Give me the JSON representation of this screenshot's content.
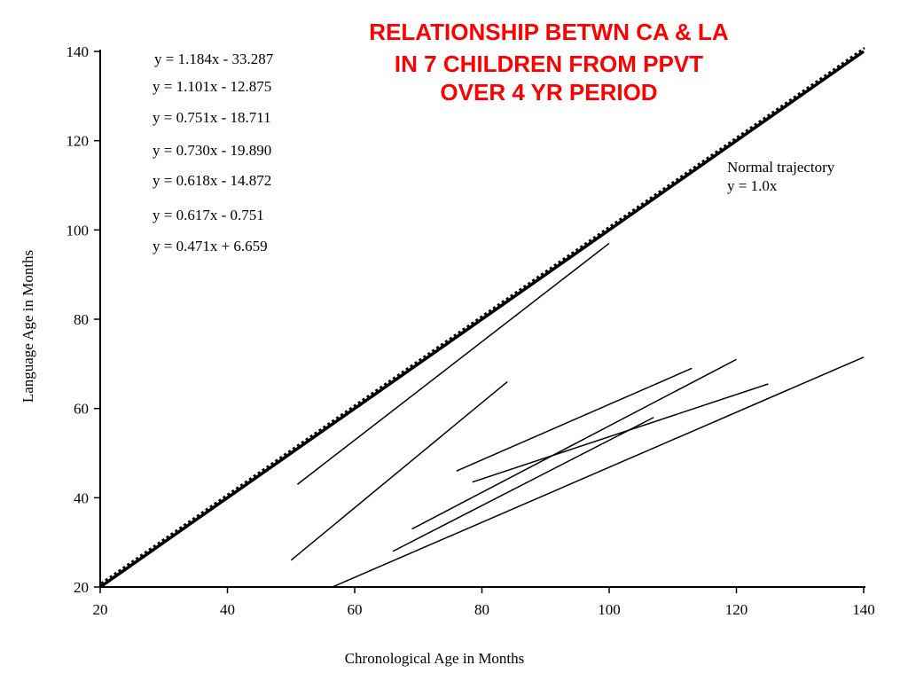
{
  "chart_data": {
    "type": "line",
    "title_lines": [
      "RELATIONSHIP BETWN CA & LA",
      "IN 7 CHILDREN FROM PPVT",
      "OVER 4 YR PERIOD"
    ],
    "xlabel": "Chronological Age in Months",
    "ylabel": "Language Age in Months",
    "xlim": [
      20,
      140
    ],
    "ylim": [
      20,
      140
    ],
    "x_ticks": [
      20,
      40,
      60,
      80,
      100,
      120,
      140
    ],
    "y_ticks": [
      20,
      40,
      60,
      80,
      100,
      120,
      140
    ],
    "grid": false,
    "equations": [
      "y = 1.184x - 33.287",
      "y = 1.101x - 12.875",
      "y = 0.751x - 18.711",
      "y = 0.730x - 19.890",
      "y = 0.618x - 14.872",
      "y = 0.617x - 0.751",
      "y = 0.471x + 6.659"
    ],
    "normal_trajectory": {
      "label_line1": "Normal trajectory",
      "label_line2": "y = 1.0x",
      "x": [
        20,
        140
      ],
      "y": [
        20,
        140
      ]
    },
    "series": [
      {
        "x": [
          50,
          84
        ],
        "y": [
          26,
          66
        ]
      },
      {
        "x": [
          51,
          100
        ],
        "y": [
          43,
          97
        ]
      },
      {
        "x": [
          56.5,
          140
        ],
        "y": [
          20,
          71.5
        ]
      },
      {
        "x": [
          66,
          107
        ],
        "y": [
          28,
          58
        ]
      },
      {
        "x": [
          69,
          120
        ],
        "y": [
          33,
          71
        ]
      },
      {
        "x": [
          76,
          113
        ],
        "y": [
          46,
          69
        ]
      },
      {
        "x": [
          78.5,
          125
        ],
        "y": [
          43.5,
          65.5
        ]
      }
    ],
    "colors": {
      "title": "#ff0000",
      "lines": "#000000",
      "axes": "#000000"
    }
  }
}
